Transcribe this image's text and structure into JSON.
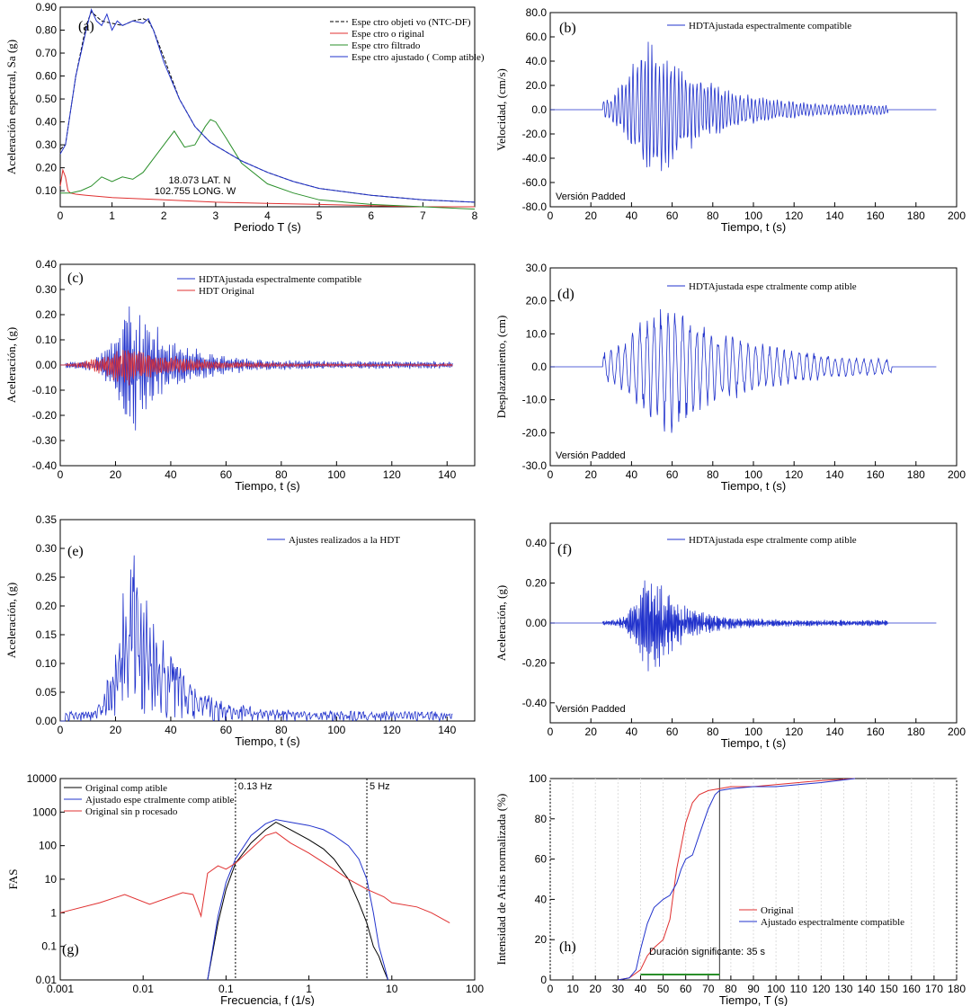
{
  "chart_data": [
    {
      "id": "a",
      "type": "line",
      "label": "(a)",
      "xlabel": "Periodo T (s)",
      "ylabel": "Aceleración espectral, Sa (g)",
      "xlim": [
        0,
        8
      ],
      "ylim": [
        0.03,
        0.9
      ],
      "xticks": [
        0,
        1,
        2,
        3,
        4,
        5,
        6,
        7,
        8
      ],
      "yticks": [
        0.1,
        0.2,
        0.3,
        0.4,
        0.5,
        0.6,
        0.7,
        0.8,
        0.9
      ],
      "ytick_labels": [
        "0.10",
        "0.20",
        "0.30",
        "0.40",
        "0.50",
        "0.60",
        "0.70",
        "0.80",
        "0.90"
      ],
      "annotations": [
        "18.073 LAT. N",
        "102.755 LONG. W"
      ],
      "series": [
        {
          "name": "Espe ctro objeti vo (NTC-DF)",
          "color": "#000000",
          "dash": "4,2",
          "x": [
            0,
            0.1,
            0.3,
            0.5,
            0.6,
            0.7,
            0.8,
            1.0,
            1.2,
            1.4,
            1.6,
            1.7,
            1.8,
            2.0,
            2.3,
            2.6,
            2.9,
            3.2,
            3.5,
            4,
            4.5,
            5,
            6,
            7,
            8
          ],
          "y": [
            0.28,
            0.3,
            0.6,
            0.82,
            0.88,
            0.86,
            0.84,
            0.83,
            0.82,
            0.84,
            0.85,
            0.84,
            0.8,
            0.68,
            0.5,
            0.38,
            0.31,
            0.27,
            0.23,
            0.18,
            0.14,
            0.11,
            0.08,
            0.06,
            0.05
          ]
        },
        {
          "name": "Espe ctro o riginal",
          "color": "#e03030",
          "dash": "",
          "x": [
            0,
            0.05,
            0.1,
            0.15,
            0.2,
            0.3,
            0.5,
            1,
            2,
            3,
            4,
            5,
            6,
            7,
            8
          ],
          "y": [
            0.12,
            0.19,
            0.16,
            0.1,
            0.09,
            0.085,
            0.08,
            0.07,
            0.06,
            0.05,
            0.045,
            0.04,
            0.035,
            0.03,
            0.03
          ]
        },
        {
          "name": "Espe ctro filtrado",
          "color": "#2a8f2a",
          "dash": "",
          "x": [
            0,
            0.2,
            0.4,
            0.6,
            0.8,
            1.0,
            1.2,
            1.4,
            1.6,
            1.8,
            2.0,
            2.2,
            2.4,
            2.6,
            2.8,
            2.9,
            3.0,
            3.2,
            3.5,
            4,
            4.5,
            5,
            6,
            7,
            8
          ],
          "y": [
            0.09,
            0.09,
            0.1,
            0.12,
            0.16,
            0.14,
            0.16,
            0.15,
            0.18,
            0.24,
            0.3,
            0.36,
            0.29,
            0.3,
            0.38,
            0.41,
            0.4,
            0.33,
            0.22,
            0.13,
            0.09,
            0.06,
            0.04,
            0.03,
            0.02
          ]
        },
        {
          "name": "Espe ctro ajustado ( Comp atible)",
          "color": "#2233cc",
          "dash": "",
          "x": [
            0,
            0.1,
            0.3,
            0.5,
            0.6,
            0.7,
            0.8,
            0.9,
            1.0,
            1.1,
            1.2,
            1.4,
            1.6,
            1.7,
            1.8,
            2.0,
            2.3,
            2.6,
            2.9,
            3.2,
            3.5,
            4,
            4.5,
            5,
            6,
            7,
            8
          ],
          "y": [
            0.26,
            0.3,
            0.6,
            0.8,
            0.89,
            0.84,
            0.82,
            0.87,
            0.8,
            0.84,
            0.82,
            0.84,
            0.83,
            0.85,
            0.8,
            0.66,
            0.5,
            0.38,
            0.31,
            0.27,
            0.23,
            0.18,
            0.14,
            0.11,
            0.08,
            0.06,
            0.05
          ]
        }
      ]
    },
    {
      "id": "b",
      "type": "line",
      "label": "(b)",
      "xlabel": "Tiempo, t (s)",
      "ylabel": "Velocidad, (cm/s)",
      "xlim": [
        0,
        200
      ],
      "ylim": [
        -80,
        80
      ],
      "xticks": [
        0,
        20,
        40,
        60,
        80,
        100,
        120,
        140,
        160,
        180,
        200
      ],
      "yticks": [
        -80,
        -60,
        -40,
        -20,
        0,
        20,
        40,
        60,
        80
      ],
      "ytick_labels": [
        "-80.0",
        "-60.0",
        "-40.0",
        "-20.0",
        "0.0",
        "20.0",
        "40.0",
        "60.0",
        "80.0"
      ],
      "annotations": [
        "Versión Padded"
      ],
      "series": [
        {
          "name": "HDTAjustada espectralmente compatible",
          "color": "#2233cc",
          "signal": {
            "t0": 0,
            "t1": 190,
            "s0": 26,
            "s1": 166,
            "peak": 52,
            "tau": 25,
            "amp": 58,
            "seed": 3,
            "freq": 0.55
          }
        }
      ]
    },
    {
      "id": "c",
      "type": "line",
      "label": "(c)",
      "xlabel": "Tiempo, t (s)",
      "ylabel": "Aceleración, (g)",
      "xlim": [
        0,
        150
      ],
      "ylim": [
        -0.4,
        0.4
      ],
      "xticks": [
        0,
        20,
        40,
        60,
        80,
        100,
        120,
        140
      ],
      "yticks": [
        -0.4,
        -0.3,
        -0.2,
        -0.1,
        0,
        0.1,
        0.2,
        0.3,
        0.4
      ],
      "ytick_labels": [
        "-0.40",
        "-0.30",
        "-0.20",
        "-0.10",
        "0.00",
        "0.10",
        "0.20",
        "0.30",
        "0.40"
      ],
      "annotations": [],
      "series": [
        {
          "name": "HDTAjustada espectralmente compatible",
          "color": "#2233cc",
          "signal": {
            "t0": 0,
            "t1": 142,
            "s0": 2,
            "s1": 142,
            "peak": 27,
            "tau": 14,
            "amp": 0.26,
            "seed": 7,
            "freq": 1.6
          }
        },
        {
          "name": "HDT Original",
          "color": "#e03030",
          "signal": {
            "t0": 0,
            "t1": 142,
            "s0": 2,
            "s1": 142,
            "peak": 25,
            "tau": 18,
            "amp": 0.08,
            "seed": 11,
            "freq": 1.3
          }
        }
      ]
    },
    {
      "id": "d",
      "type": "line",
      "label": "(d)",
      "xlabel": "Tiempo, t (s)",
      "ylabel": "Desplazamiento, (cm)",
      "xlim": [
        0,
        200
      ],
      "ylim": [
        -30,
        30
      ],
      "xticks": [
        0,
        20,
        40,
        60,
        80,
        100,
        120,
        140,
        160,
        180,
        200
      ],
      "yticks": [
        -30,
        -20,
        -10,
        0,
        10,
        20,
        30
      ],
      "ytick_labels": [
        "-30.0",
        "-20.0",
        "-10.0",
        "0.0",
        "10.0",
        "20.0",
        "30.0"
      ],
      "annotations": [
        "Versión Padded"
      ],
      "series": [
        {
          "name": "HDTAjustada espe ctralmente comp atible",
          "color": "#2233cc",
          "signal": {
            "t0": 0,
            "t1": 190,
            "s0": 26,
            "s1": 168,
            "peak": 60,
            "tau": 40,
            "amp": 19,
            "seed": 5,
            "freq": 0.28
          }
        }
      ]
    },
    {
      "id": "e",
      "type": "line",
      "label": "(e)",
      "xlabel": "Tiempo, t (s)",
      "ylabel": "Aceleración, (g)",
      "xlim": [
        0,
        150
      ],
      "ylim": [
        0,
        0.35
      ],
      "xticks": [
        0,
        20,
        40,
        60,
        80,
        100,
        120,
        140
      ],
      "yticks": [
        0,
        0.05,
        0.1,
        0.15,
        0.2,
        0.25,
        0.3,
        0.35
      ],
      "ytick_labels": [
        "0.00",
        "0.05",
        "0.10",
        "0.15",
        "0.20",
        "0.25",
        "0.30",
        "0.35"
      ],
      "annotations": [],
      "series": [
        {
          "name": "Ajustes realizados a la HDT",
          "color": "#2233cc",
          "abs": true,
          "signal": {
            "t0": 0,
            "t1": 142,
            "s0": 2,
            "s1": 142,
            "peak": 27,
            "tau": 12,
            "amp": 0.3,
            "seed": 9,
            "freq": 1.6
          }
        }
      ]
    },
    {
      "id": "f",
      "type": "line",
      "label": "(f)",
      "xlabel": "Tiempo, t (s)",
      "ylabel": "Aceleración, (g)",
      "xlim": [
        0,
        200
      ],
      "ylim": [
        -0.5,
        0.5
      ],
      "xticks": [
        0,
        20,
        40,
        60,
        80,
        100,
        120,
        140,
        160,
        180,
        200
      ],
      "yticks": [
        -0.4,
        -0.2,
        0,
        0.2,
        0.4
      ],
      "ytick_labels": [
        "-0.40",
        "-0.20",
        "0.00",
        "0.20",
        "0.40"
      ],
      "annotations": [
        "Versión Padded"
      ],
      "series": [
        {
          "name": "HDTAjustada espe ctralmente comp atible",
          "color": "#2233cc",
          "signal": {
            "t0": 0,
            "t1": 190,
            "s0": 26,
            "s1": 166,
            "peak": 50,
            "tau": 14,
            "amp": 0.27,
            "seed": 13,
            "freq": 1.6
          }
        }
      ]
    },
    {
      "id": "g",
      "type": "line",
      "label": "(g)",
      "log": true,
      "xlabel": "Frecuencia, f (1/s)",
      "ylabel": "FAS",
      "xlim": [
        0.001,
        100
      ],
      "ylim": [
        0.01,
        10000
      ],
      "xticks": [
        0.001,
        0.01,
        0.1,
        1,
        10,
        100
      ],
      "xtick_labels": [
        "0.001",
        "0.01",
        "0.1",
        "1",
        "10",
        "100"
      ],
      "yticks": [
        0.01,
        0.1,
        1,
        10,
        100,
        1000,
        10000
      ],
      "ytick_labels": [
        "0.01",
        "0.1",
        "1",
        "10",
        "100",
        "1000",
        "10000"
      ],
      "vlines": [
        {
          "x": 0.13,
          "label": "0.13 Hz"
        },
        {
          "x": 5,
          "label": "5 Hz"
        }
      ],
      "annotations": [],
      "series": [
        {
          "name": "Original comp atible",
          "color": "#000000",
          "x": [
            0.06,
            0.08,
            0.1,
            0.13,
            0.2,
            0.3,
            0.4,
            0.6,
            1,
            1.5,
            2,
            3,
            4,
            5,
            6,
            7,
            8,
            9
          ],
          "y": [
            0.01,
            0.5,
            5,
            30,
            120,
            300,
            500,
            300,
            150,
            80,
            40,
            10,
            2,
            0.5,
            0.1,
            0.05,
            0.02,
            0.01
          ]
        },
        {
          "name": "Ajustado espe ctralmente comp atible",
          "color": "#2233cc",
          "x": [
            0.06,
            0.08,
            0.1,
            0.13,
            0.2,
            0.3,
            0.4,
            0.6,
            1,
            1.5,
            2,
            3,
            4,
            5,
            6,
            7,
            8,
            9
          ],
          "y": [
            0.01,
            0.8,
            8,
            40,
            200,
            450,
            600,
            500,
            400,
            300,
            200,
            100,
            40,
            10,
            1,
            0.1,
            0.03,
            0.01
          ]
        },
        {
          "name": "Original sin p rocesado",
          "color": "#e03030",
          "x": [
            0.001,
            0.003,
            0.006,
            0.012,
            0.03,
            0.04,
            0.05,
            0.06,
            0.08,
            0.1,
            0.13,
            0.2,
            0.3,
            0.4,
            0.6,
            1,
            2,
            3,
            5,
            8,
            10,
            20,
            30,
            50
          ],
          "y": [
            1,
            2,
            3.5,
            1.8,
            4,
            3.5,
            0.8,
            15,
            25,
            20,
            30,
            80,
            200,
            250,
            120,
            60,
            20,
            10,
            5,
            3,
            2,
            1.5,
            1,
            0.5
          ]
        }
      ]
    },
    {
      "id": "h",
      "type": "line",
      "label": "(h)",
      "xlabel": "Tiempo, T (s)",
      "ylabel": "Intensidad de Arias normalizada (%)",
      "xlim": [
        0,
        180
      ],
      "ylim": [
        0,
        100
      ],
      "xticks": [
        0,
        10,
        20,
        30,
        40,
        50,
        60,
        70,
        80,
        90,
        100,
        110,
        120,
        130,
        140,
        150,
        160,
        170,
        180
      ],
      "yticks": [
        0,
        20,
        40,
        60,
        80,
        100
      ],
      "annotations": [
        "Duración significante: 35 s"
      ],
      "vlines": [
        {
          "x": 75,
          "label": ""
        }
      ],
      "series": [
        {
          "name": "Original",
          "color": "#e03030",
          "x": [
            30,
            35,
            40,
            43,
            46,
            50,
            53,
            56,
            60,
            63,
            66,
            70,
            75,
            80,
            90,
            100,
            110,
            120,
            135
          ],
          "y": [
            0,
            1,
            5,
            12,
            16,
            20,
            30,
            55,
            78,
            88,
            92,
            94,
            95,
            96,
            96,
            97,
            98,
            99,
            100
          ]
        },
        {
          "name": "Ajustado espectralmente compatible",
          "color": "#2233cc",
          "x": [
            30,
            35,
            38,
            40,
            43,
            46,
            50,
            53,
            56,
            58,
            60,
            63,
            66,
            70,
            73,
            75,
            80,
            90,
            100,
            110,
            120,
            135
          ],
          "y": [
            0,
            1,
            5,
            15,
            28,
            36,
            40,
            42,
            48,
            55,
            60,
            62,
            72,
            85,
            92,
            94,
            95,
            96,
            96,
            97,
            98,
            100
          ]
        }
      ]
    }
  ]
}
